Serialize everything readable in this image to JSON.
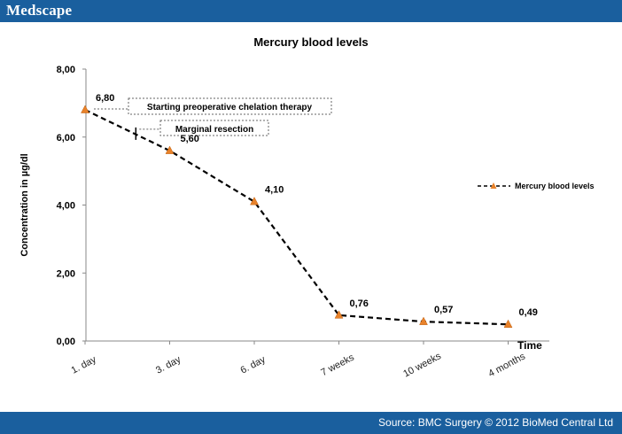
{
  "header": {
    "brand": "Medscape"
  },
  "footer": {
    "source": "Source: BMC Surgery © 2012 BioMed Central Ltd"
  },
  "colors": {
    "header_bg": "#1a5f9e",
    "marker": "#e8822a",
    "line": "#000000"
  },
  "chart_data": {
    "type": "line",
    "title": "Mercury blood levels",
    "xlabel": "Time",
    "ylabel": "Concentration in µg/dl",
    "ylim": [
      0,
      8
    ],
    "yticks": [
      "0,00",
      "2,00",
      "4,00",
      "6,00",
      "8,00"
    ],
    "categories": [
      "1. day",
      "3. day",
      "6. day",
      "7 weeks",
      "10 weeks",
      "4 months"
    ],
    "series": [
      {
        "name": "Mercury blood levels",
        "values": [
          6.8,
          5.6,
          4.1,
          0.76,
          0.57,
          0.49
        ],
        "labels": [
          "6,80",
          "5,60",
          "4,10",
          "0,76",
          "0,57",
          "0,49"
        ]
      }
    ],
    "annotations": [
      {
        "text": "Starting preoperative chelation therapy",
        "at_category": 0
      },
      {
        "text": "Marginal resection",
        "between_categories": [
          0,
          1
        ],
        "value": 6.1
      }
    ],
    "legend": "right"
  }
}
